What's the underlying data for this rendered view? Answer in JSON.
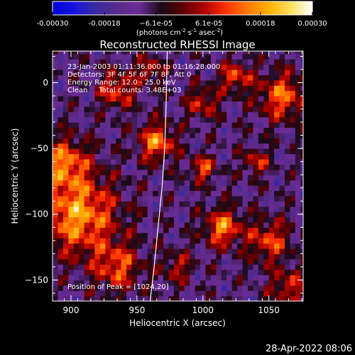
{
  "chart_data": {
    "type": "heatmap",
    "title": "Reconstructed RHESSI Image",
    "xlabel": "Heliocentric X (arcsec)",
    "ylabel": "Heliocentric Y (arcsec)",
    "xlim": [
      886,
      1076
    ],
    "ylim": [
      -166,
      24
    ],
    "x_ticks": [
      900,
      950,
      1000,
      1050
    ],
    "y_ticks": [
      0,
      -50,
      -100,
      -150
    ],
    "colorbar": {
      "range": [
        -0.0003,
        0.0003
      ],
      "tick_values": [
        -0.0003,
        -0.00018,
        -6.1e-05,
        6.1e-05,
        0.00018,
        0.0003
      ],
      "tick_labels": [
        "-0.00030",
        "-0.00018",
        "−6.1e-05",
        "6.1e-05",
        "0.00018",
        "0.00030"
      ],
      "units_main": "(photons cm",
      "units_sup1": "-2",
      "units_mid1": " s",
      "units_sup2": "-1",
      "units_mid2": " asec",
      "units_sup3": "-2",
      "units_end": ")"
    },
    "info_lines": [
      "23-Jan-2003 01:11:36.000 to 01:16:28.000",
      "Detectors: 3F 4F 5F 6F 7F 8F, Att 0",
      "Energy Range: 12.0 - 25.0 keV",
      "Clean     Total counts: 3.48E+03"
    ],
    "peak_label": "Position of Peak = [1024,20]",
    "limb_curve": [
      [
        960,
        -166
      ],
      [
        963,
        -140
      ],
      [
        966,
        -110
      ],
      [
        969,
        -80
      ],
      [
        971,
        -50
      ],
      [
        972,
        -20
      ],
      [
        973,
        24
      ]
    ],
    "colors": {
      "cmap": [
        "#0000d8",
        "#1414e0",
        "#3a2aa0",
        "#5a2a8a",
        "#6b2c94",
        "#1a0a1a",
        "#5a0000",
        "#b00000",
        "#ff3000",
        "#ff7a00",
        "#ffb000",
        "#ffe060",
        "#ffffff"
      ],
      "limb": "#ffffff",
      "text": "#ffffff",
      "background": "#000000"
    }
  },
  "timestamp": "28-Apr-2022 08:06"
}
